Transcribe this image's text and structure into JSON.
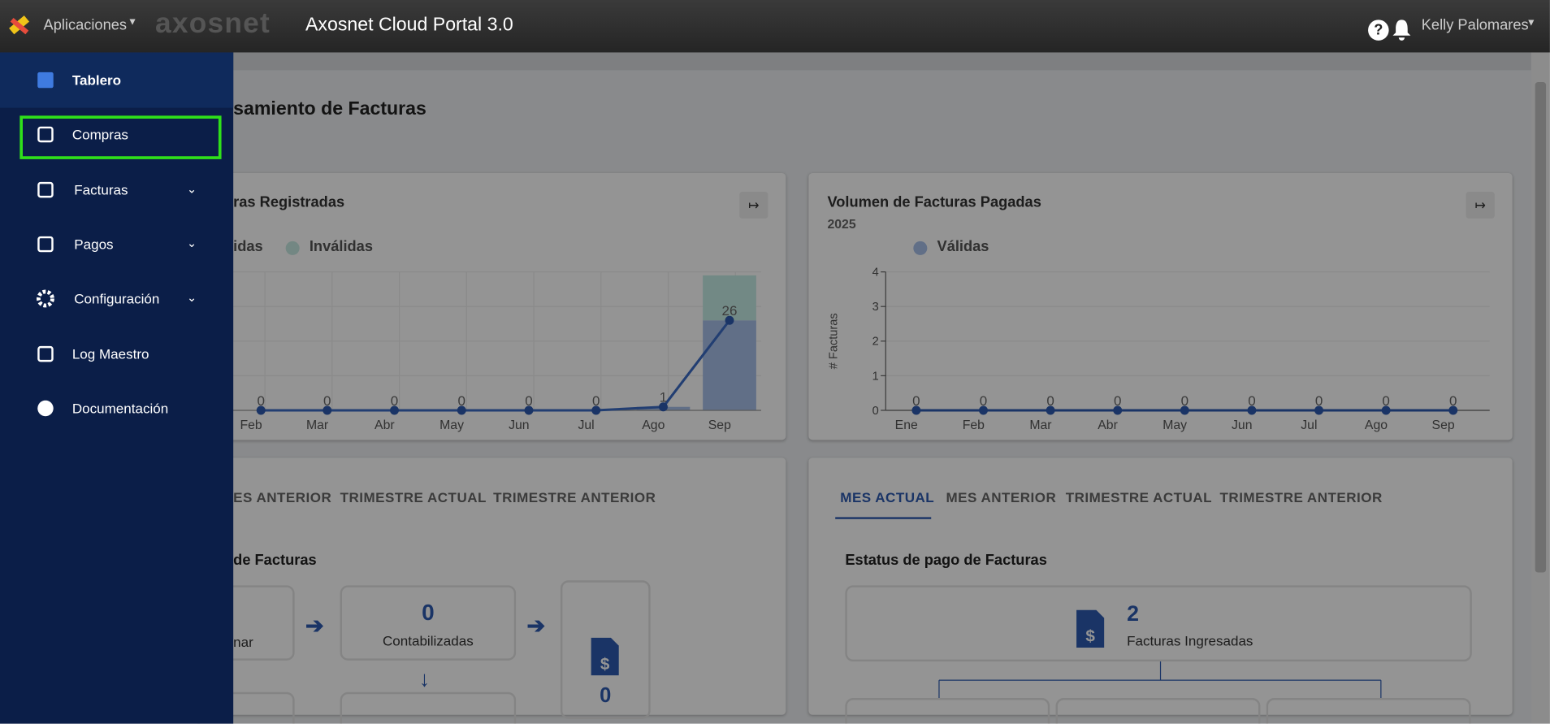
{
  "header": {
    "apps": "Aplicaciones",
    "logo": "axosnet",
    "title": "Axosnet Cloud Portal 3.0",
    "user": "Kelly Palomares"
  },
  "sidebar": {
    "items": [
      "Tablero",
      "Compras",
      "Facturas",
      "Pagos",
      "Configuración",
      "Log Maestro",
      "Documentación"
    ]
  },
  "page": {
    "title": "samiento de Facturas"
  },
  "registered_chart": {
    "title": "ras Registradas",
    "categories": [
      "Feb",
      "Mar",
      "Abr",
      "May",
      "Jun",
      "Jul",
      "Ago",
      "Sep"
    ],
    "series": [
      {
        "name": "idas",
        "color": "#3b6cc4",
        "values": [
          0,
          0,
          0,
          0,
          0,
          0,
          1,
          26
        ]
      },
      {
        "name": "Inválidas",
        "color": "#8fd3c6",
        "values": [
          0,
          0,
          0,
          0,
          0,
          0,
          0,
          13
        ]
      }
    ]
  },
  "paid_chart": {
    "title": "Volumen de Facturas Pagadas",
    "subtitle": "2025",
    "legend": "Válidas",
    "y_label": "# Facturas",
    "ylim": [
      0,
      4
    ],
    "yticks": [
      0,
      1,
      2,
      3,
      4
    ],
    "categories": [
      "Ene",
      "Feb",
      "Mar",
      "Abr",
      "May",
      "Jun",
      "Jul",
      "Ago",
      "Sep"
    ],
    "values": [
      0,
      0,
      0,
      0,
      0,
      0,
      0,
      0,
      0
    ]
  },
  "process_card": {
    "tabs": [
      "ES ANTERIOR",
      "TRIMESTRE ACTUAL",
      "TRIMESTRE ANTERIOR"
    ],
    "title": "de Facturas",
    "box1": "nar",
    "box2_value": "0",
    "box2_label": "Contabilizadas",
    "box3_value": "0"
  },
  "payment_card": {
    "tabs": [
      "MES ACTUAL",
      "MES ANTERIOR",
      "TRIMESTRE ACTUAL",
      "TRIMESTRE ANTERIOR"
    ],
    "title": "Estatus de pago de Facturas",
    "value": "2",
    "label": "Facturas Ingresadas"
  }
}
